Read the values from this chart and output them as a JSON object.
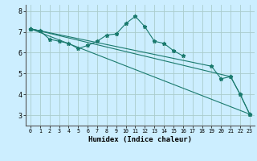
{
  "title": "",
  "xlabel": "Humidex (Indice chaleur)",
  "bg_color": "#cceeff",
  "grid_color": "#aacccc",
  "line_color": "#1a7a6e",
  "xlim": [
    -0.5,
    23.5
  ],
  "ylim": [
    2.5,
    8.3
  ],
  "yticks": [
    3,
    4,
    5,
    6,
    7,
    8
  ],
  "xticks": [
    0,
    1,
    2,
    3,
    4,
    5,
    6,
    7,
    8,
    9,
    10,
    11,
    12,
    13,
    14,
    15,
    16,
    17,
    18,
    19,
    20,
    21,
    22,
    23
  ],
  "xtick_labels": [
    "0",
    "1",
    "2",
    "3",
    "4",
    "5",
    "6",
    "7",
    "8",
    "9",
    "10",
    "11",
    "12",
    "13",
    "14",
    "15",
    "16",
    "17",
    "18",
    "19",
    "20",
    "21",
    "22",
    "23"
  ],
  "series": [
    {
      "x": [
        0,
        1,
        2,
        3,
        4,
        5,
        6,
        7,
        8,
        9,
        10,
        11,
        12,
        13,
        14,
        15,
        16
      ],
      "y": [
        7.15,
        7.05,
        6.65,
        6.55,
        6.45,
        6.2,
        6.35,
        6.55,
        6.85,
        6.9,
        7.4,
        7.75,
        7.25,
        6.55,
        6.45,
        6.1,
        5.85
      ]
    },
    {
      "x": [
        0,
        23
      ],
      "y": [
        7.15,
        3.05
      ]
    },
    {
      "x": [
        0,
        21,
        22,
        23
      ],
      "y": [
        7.15,
        4.85,
        4.0,
        3.05
      ]
    },
    {
      "x": [
        0,
        19,
        20,
        21,
        22,
        23
      ],
      "y": [
        7.15,
        5.35,
        4.75,
        4.85,
        4.0,
        3.05
      ]
    }
  ]
}
